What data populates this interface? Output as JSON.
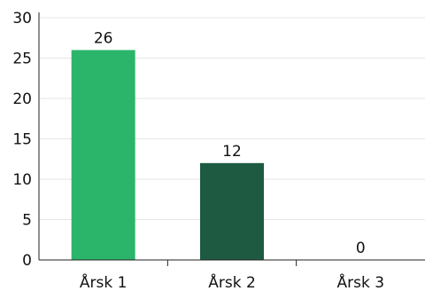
{
  "chart_data": {
    "type": "bar",
    "title": "",
    "xlabel": "",
    "ylabel": "",
    "categories": [
      "Årsk 1",
      "Årsk 2",
      "Årsk 3"
    ],
    "values": [
      26,
      12,
      0
    ],
    "data_labels": [
      "26",
      "12",
      "0"
    ],
    "ylim": [
      0,
      30
    ],
    "yticks": [
      0,
      5,
      10,
      15,
      20,
      25,
      30
    ],
    "ytick_labels": [
      "0",
      "5",
      "10",
      "15",
      "20",
      "25",
      "30"
    ],
    "grid": true,
    "legend": "none",
    "colors": {
      "bar_1": "#2bb56b",
      "bar_2": "#1d5a41",
      "bar_3": "#2bb56b",
      "grid": "#e6e6e6",
      "axis": "#222222",
      "text": "#111111"
    }
  }
}
